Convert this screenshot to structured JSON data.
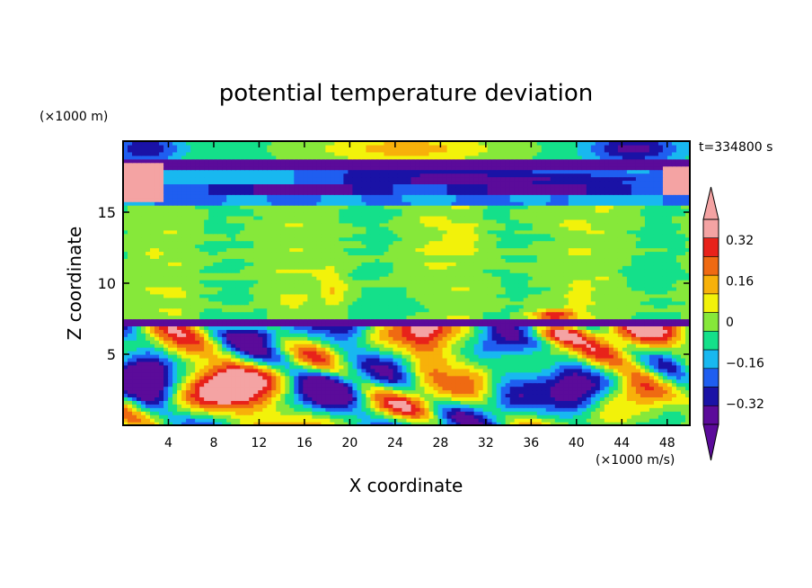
{
  "chart_data": {
    "type": "heatmap",
    "title": "potential temperature deviation",
    "xlabel": "X coordinate",
    "ylabel": "Z coordinate",
    "x_unit": "(×1000 m/s)",
    "y_unit": "(×1000 m)",
    "time_label": "t=334800 s",
    "xlim": [
      0,
      50
    ],
    "ylim": [
      0,
      20
    ],
    "x_ticks": [
      4,
      8,
      12,
      16,
      20,
      24,
      28,
      32,
      36,
      40,
      44,
      48
    ],
    "y_ticks": [
      5,
      10,
      15
    ],
    "colorbar": {
      "levels": [
        -0.4,
        -0.32,
        -0.24,
        -0.16,
        -0.08,
        0,
        0.08,
        0.16,
        0.24,
        0.32,
        0.4
      ],
      "colors": [
        "#5b0b9a",
        "#1a12a6",
        "#1f5ef0",
        "#18b8f0",
        "#14e08a",
        "#86e83a",
        "#f2f20a",
        "#f7b10a",
        "#ef6a12",
        "#e8221a",
        "#f4a3a3"
      ],
      "over_color": "#f4a3a3",
      "under_color": "#5b0b9a",
      "tick_labels": [
        "0.32",
        "0.16",
        "0",
        "−0.16",
        "−0.32"
      ]
    }
  }
}
